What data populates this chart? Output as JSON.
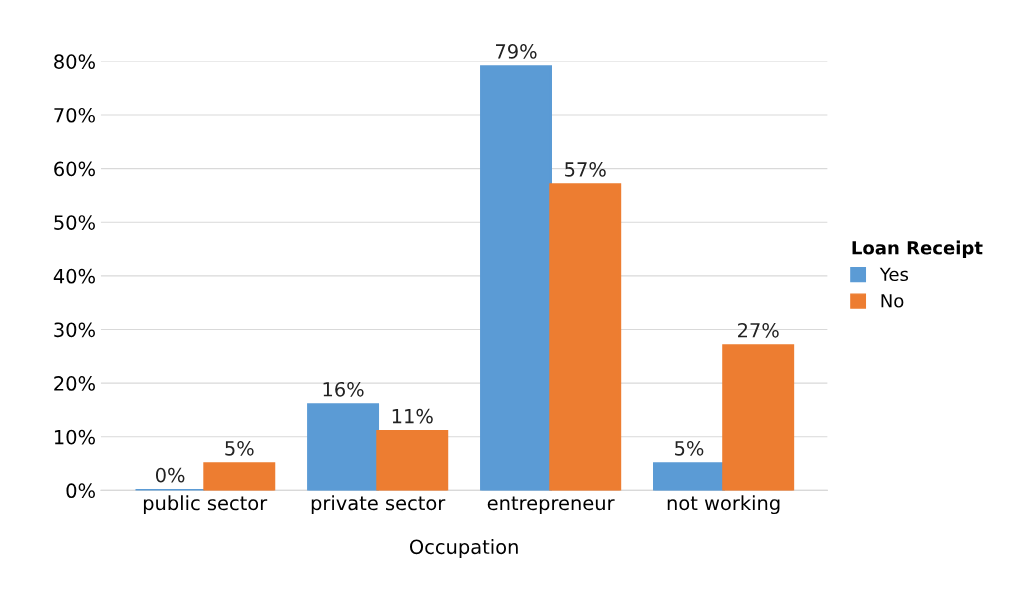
{
  "chart_data": {
    "type": "bar",
    "xlabel": "Occupation",
    "legend_title": "Loan Receipt",
    "legend": "right",
    "grid": "y",
    "categories": [
      "public sector",
      "private sector",
      "entrepreneur",
      "not working"
    ],
    "series": [
      {
        "name": "Yes",
        "color": "#5b9bd5",
        "values": [
          0,
          16,
          79,
          5
        ],
        "value_labels": [
          "0%",
          "16%",
          "79%",
          "5%"
        ]
      },
      {
        "name": "No",
        "color": "#ed7d31",
        "values": [
          5,
          11,
          57,
          27
        ],
        "value_labels": [
          "5%",
          "11%",
          "57%",
          "27%"
        ]
      }
    ],
    "ylim": [
      0,
      80
    ],
    "yticks": [
      {
        "value": 0,
        "label": "0%"
      },
      {
        "value": 10,
        "label": "10%"
      },
      {
        "value": 20,
        "label": "20%"
      },
      {
        "value": 30,
        "label": "30%"
      },
      {
        "value": 40,
        "label": "40%"
      },
      {
        "value": 50,
        "label": "50%"
      },
      {
        "value": 60,
        "label": "60%"
      },
      {
        "value": 70,
        "label": "70%"
      },
      {
        "value": 80,
        "label": "80%"
      }
    ]
  }
}
